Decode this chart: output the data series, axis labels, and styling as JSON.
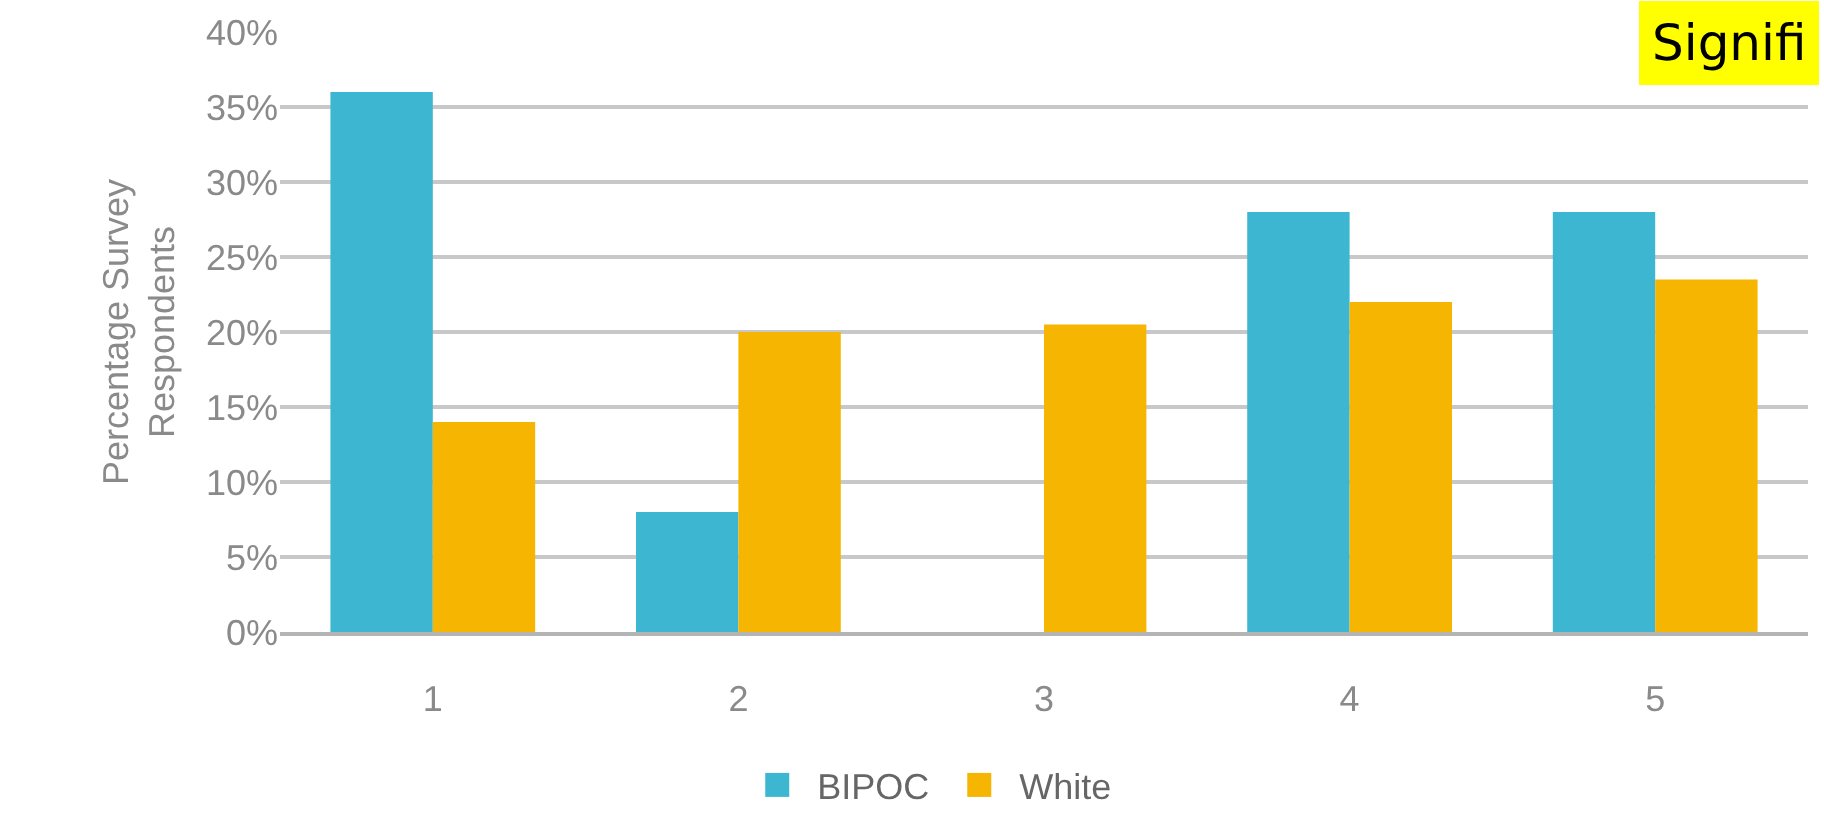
{
  "chart_data": {
    "type": "bar",
    "ylabel": "Percentage Survey\nRespondents",
    "categories": [
      "1",
      "2",
      "3",
      "4",
      "5"
    ],
    "series": [
      {
        "name": "BIPOC",
        "color": "#3db7d1",
        "values": [
          36,
          8,
          0,
          28,
          28
        ]
      },
      {
        "name": "White",
        "color": "#f6b500",
        "values": [
          14,
          20,
          20.5,
          22,
          23.5
        ]
      }
    ],
    "ylim": [
      0,
      40
    ],
    "yticks": [
      {
        "value": 0,
        "label": "0%"
      },
      {
        "value": 5,
        "label": "5%"
      },
      {
        "value": 10,
        "label": "10%"
      },
      {
        "value": 15,
        "label": "15%"
      },
      {
        "value": 20,
        "label": "20%"
      },
      {
        "value": 25,
        "label": "25%"
      },
      {
        "value": 30,
        "label": "30%"
      },
      {
        "value": 35,
        "label": "35%"
      },
      {
        "value": 40,
        "label": "40%"
      }
    ],
    "grid": "y",
    "legend": "bottom",
    "annotations": [
      "Signifi"
    ]
  }
}
